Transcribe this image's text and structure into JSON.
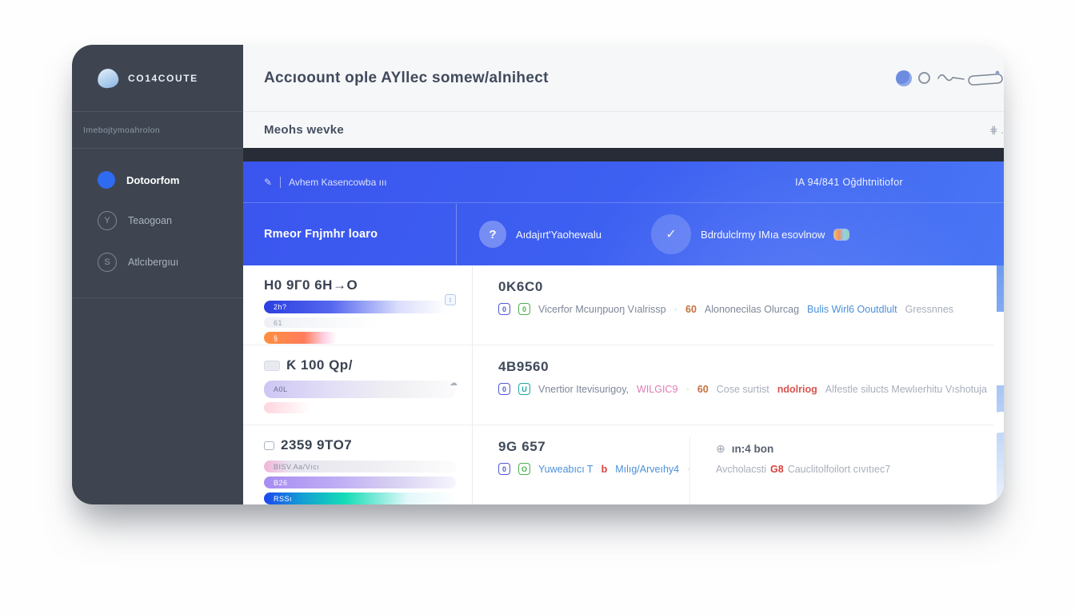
{
  "sidebar": {
    "logo_label": "Co14coute",
    "workspace": "Imebojtymoahrolon",
    "items": [
      {
        "label": "Dotoorfom"
      },
      {
        "label": "Teaogoan"
      },
      {
        "label": "Atlcıbergıuı"
      }
    ],
    "item_icons": {
      "steering_glyph": "Y",
      "s_glyph": "S"
    }
  },
  "header": {
    "title": "Accıoount ople AYllec somew/alnihect",
    "subtitle": "Meohs wevke",
    "subtitle_action": "⋕ ."
  },
  "banner": {
    "edit_glyph": "✎",
    "breadcrumb": "Avhem Kasencowba ııı",
    "reference": "IA 94/841 Oğdhtnitiofor",
    "title": "Rmeor Fnjmhr loaro",
    "avatar_glyph": "?",
    "assignee": "Aıdajırt'Yaohewalu",
    "check_glyph": "✓",
    "status": "Bdrdulclrmy IMıa esovlnow"
  },
  "rows": [
    {
      "title": "H0 9Г0 6H→O",
      "mini_icon": "t",
      "bars": [
        {
          "label": "2h?",
          "c": "bar-blue",
          "w": "100%"
        },
        {
          "label": "61",
          "c": "bar-ghost",
          "w": "100%"
        },
        {
          "label": "§",
          "c": "bar-orange",
          "w": "38%"
        }
      ],
      "right_title": "0K6C0",
      "tokens": [
        {
          "t": "0",
          "c": "badge badge-blue"
        },
        {
          "t": "0",
          "c": "badge badge-green"
        },
        {
          "t": "Vicerfor Mcuıŋpuoŋ Vıalrissp",
          "c": "tk-gray"
        },
        {
          "t": "◦",
          "c": "tk-dot"
        },
        {
          "t": "60",
          "c": "tk-orange"
        },
        {
          "t": "Alononecilas Olurcag",
          "c": "tk-gray"
        },
        {
          "t": "Bulis Wirl6 Ooutdlult",
          "c": "tk-blue"
        },
        {
          "t": "Gressnnes",
          "c": "tk-lightgray"
        }
      ]
    },
    {
      "title": "Ƙ 100 Qp/",
      "cloud_icon": "☁",
      "bars": [
        {
          "label": "A0L",
          "c": "bar-lavender",
          "w": "100%"
        },
        {
          "label": "",
          "c": "bar-pink-faint",
          "w": "26%"
        }
      ],
      "right_title": "4B9560",
      "tokens": [
        {
          "t": "0",
          "c": "badge badge-blue"
        },
        {
          "t": "U",
          "c": "badge badge-teal"
        },
        {
          "t": "Vnertior Itevisurigoy,",
          "c": "tk-gray"
        },
        {
          "t": "WILGIC9",
          "c": "tk-pink"
        },
        {
          "t": "◦",
          "c": "tk-dot-yellow"
        },
        {
          "t": "60",
          "c": "tk-orange"
        },
        {
          "t": "Cose surtist",
          "c": "tk-lightgray"
        },
        {
          "t": "ndolriog",
          "c": "tk-red"
        },
        {
          "t": "Alfestle silucts Mewlıerhitu Vıshotuja",
          "c": "tk-lightgray"
        }
      ]
    },
    {
      "title": "2359 9TO7",
      "bars": [
        {
          "label": "BISV.Aa/Vıcı",
          "c": "bar-pinkgray",
          "w": "100%"
        },
        {
          "label": "B26",
          "c": "bar-purple",
          "w": "100%"
        },
        {
          "label": "RSSı",
          "c": "bar-blueteal",
          "w": "100%"
        }
      ],
      "right_title": "9G 657",
      "tokens": [
        {
          "t": "0",
          "c": "badge badge-blue"
        },
        {
          "t": "O",
          "c": "badge badge-green"
        },
        {
          "t": "Yuweabıcı T",
          "c": "tk-blue"
        },
        {
          "t": "b",
          "c": "tk-red-bold"
        },
        {
          "t": "Mılıg/Arveıhy4",
          "c": "tk-blue"
        },
        {
          "t": "◦ ◦ ◦",
          "c": "tk-dot"
        }
      ],
      "extra": {
        "icon_glyph": "⊕",
        "title": "ın:4 bon",
        "pre": "Avcholacsti",
        "badge": "G8",
        "post": "Cauclitolfoilort cıvıtıec7"
      }
    }
  ]
}
